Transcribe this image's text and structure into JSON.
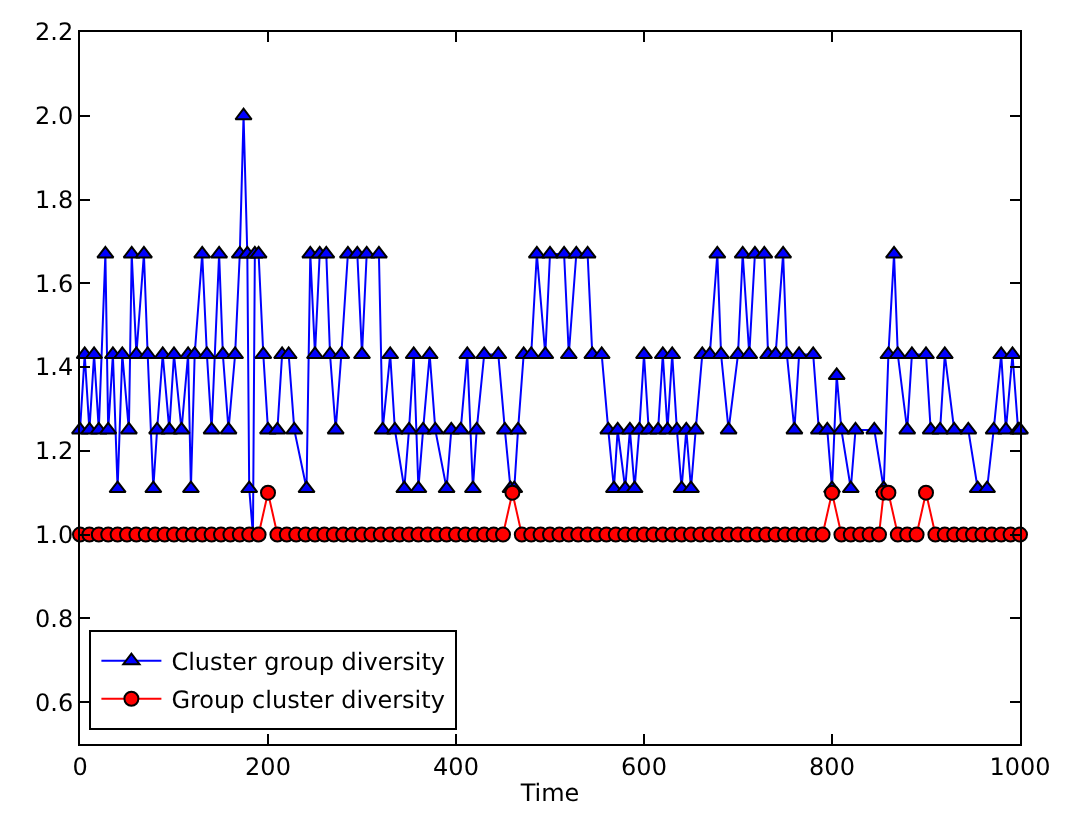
{
  "chart_data": {
    "type": "line",
    "xlabel": "Time",
    "xlim": [
      0,
      1000
    ],
    "xticks": [
      0,
      200,
      400,
      600,
      800,
      1000
    ],
    "ylim": [
      0.5,
      2.2
    ],
    "yticks": [
      0.6,
      0.8,
      {
        "value": 1,
        "label": "1.0"
      },
      1.2,
      1.4,
      1.6,
      1.8,
      {
        "value": 2,
        "label": "2.0"
      },
      2.2
    ],
    "legend": "bottom left",
    "line_style": "solid",
    "series": [
      {
        "name": "Cluster group diversity",
        "color": "#0000ff",
        "marker": "triangle",
        "x": [
          0,
          5,
          10,
          15,
          20,
          27,
          30,
          35,
          40,
          45,
          52,
          55,
          60,
          68,
          72,
          78,
          82,
          88,
          95,
          100,
          108,
          115,
          118,
          122,
          130,
          135,
          140,
          148,
          152,
          158,
          165,
          170,
          174,
          178,
          180,
          184,
          186,
          190,
          195,
          200,
          210,
          215,
          222,
          228,
          241,
          245,
          250,
          255,
          262,
          266,
          272,
          278,
          285,
          295,
          300,
          305,
          318,
          322,
          330,
          335,
          345,
          350,
          355,
          360,
          365,
          372,
          378,
          390,
          395,
          405,
          412,
          418,
          422,
          430,
          445,
          452,
          458,
          462,
          466,
          472,
          480,
          486,
          495,
          500,
          515,
          520,
          528,
          540,
          545,
          555,
          562,
          568,
          572,
          580,
          585,
          590,
          595,
          600,
          605,
          615,
          620,
          625,
          630,
          635,
          640,
          645,
          650,
          655,
          662,
          670,
          678,
          682,
          690,
          700,
          705,
          712,
          718,
          728,
          732,
          740,
          748,
          752,
          760,
          765,
          780,
          786,
          795,
          800,
          805,
          810,
          820,
          825,
          845,
          855,
          860,
          866,
          870,
          880,
          885,
          900,
          905,
          915,
          920,
          930,
          945,
          955,
          965,
          972,
          980,
          985,
          992,
          998,
          1000
        ],
        "values": [
          1.25,
          1.43,
          1.25,
          1.43,
          1.25,
          1.67,
          1.25,
          1.43,
          1.11,
          1.43,
          1.25,
          1.67,
          1.43,
          1.67,
          1.43,
          1.11,
          1.25,
          1.43,
          1.25,
          1.43,
          1.25,
          1.43,
          1.11,
          1.43,
          1.67,
          1.43,
          1.25,
          1.67,
          1.43,
          1.25,
          1.43,
          1.67,
          2.0,
          1.67,
          1.11,
          1.0,
          1.67,
          1.67,
          1.43,
          1.25,
          1.25,
          1.43,
          1.43,
          1.25,
          1.11,
          1.67,
          1.43,
          1.67,
          1.67,
          1.43,
          1.25,
          1.43,
          1.67,
          1.67,
          1.43,
          1.67,
          1.67,
          1.25,
          1.43,
          1.25,
          1.11,
          1.25,
          1.43,
          1.11,
          1.25,
          1.43,
          1.25,
          1.11,
          1.25,
          1.25,
          1.43,
          1.11,
          1.25,
          1.43,
          1.43,
          1.25,
          1.11,
          1.11,
          1.25,
          1.43,
          1.43,
          1.67,
          1.43,
          1.67,
          1.67,
          1.43,
          1.67,
          1.67,
          1.43,
          1.43,
          1.25,
          1.11,
          1.25,
          1.11,
          1.25,
          1.11,
          1.25,
          1.43,
          1.25,
          1.25,
          1.43,
          1.25,
          1.43,
          1.25,
          1.11,
          1.25,
          1.11,
          1.25,
          1.43,
          1.43,
          1.67,
          1.43,
          1.25,
          1.43,
          1.67,
          1.43,
          1.67,
          1.67,
          1.43,
          1.43,
          1.67,
          1.43,
          1.25,
          1.43,
          1.43,
          1.25,
          1.25,
          1.11,
          1.38,
          1.25,
          1.11,
          1.25,
          1.25,
          1.11,
          1.43,
          1.67,
          1.43,
          1.25,
          1.43,
          1.43,
          1.25,
          1.25,
          1.43,
          1.25,
          1.25,
          1.11,
          1.11,
          1.25,
          1.43,
          1.25,
          1.43,
          1.25,
          1.25
        ]
      },
      {
        "name": "Group cluster diversity",
        "color": "#ff0000",
        "marker": "circle",
        "x": [
          0,
          10,
          20,
          30,
          40,
          50,
          60,
          70,
          80,
          90,
          100,
          110,
          120,
          130,
          140,
          150,
          160,
          170,
          180,
          190,
          200,
          210,
          220,
          230,
          240,
          250,
          260,
          270,
          280,
          290,
          300,
          310,
          320,
          330,
          340,
          350,
          360,
          370,
          380,
          390,
          400,
          410,
          420,
          430,
          440,
          450,
          460,
          470,
          480,
          490,
          500,
          510,
          520,
          530,
          540,
          550,
          560,
          570,
          580,
          590,
          600,
          610,
          620,
          630,
          640,
          650,
          660,
          670,
          680,
          690,
          700,
          710,
          720,
          730,
          740,
          750,
          760,
          770,
          780,
          790,
          800,
          810,
          820,
          830,
          840,
          850,
          855,
          860,
          870,
          880,
          890,
          900,
          910,
          920,
          930,
          940,
          950,
          960,
          970,
          980,
          990,
          1000
        ],
        "values": [
          1.0,
          1.0,
          1.0,
          1.0,
          1.0,
          1.0,
          1.0,
          1.0,
          1.0,
          1.0,
          1.0,
          1.0,
          1.0,
          1.0,
          1.0,
          1.0,
          1.0,
          1.0,
          1.0,
          1.0,
          1.1,
          1.0,
          1.0,
          1.0,
          1.0,
          1.0,
          1.0,
          1.0,
          1.0,
          1.0,
          1.0,
          1.0,
          1.0,
          1.0,
          1.0,
          1.0,
          1.0,
          1.0,
          1.0,
          1.0,
          1.0,
          1.0,
          1.0,
          1.0,
          1.0,
          1.0,
          1.1,
          1.0,
          1.0,
          1.0,
          1.0,
          1.0,
          1.0,
          1.0,
          1.0,
          1.0,
          1.0,
          1.0,
          1.0,
          1.0,
          1.0,
          1.0,
          1.0,
          1.0,
          1.0,
          1.0,
          1.0,
          1.0,
          1.0,
          1.0,
          1.0,
          1.0,
          1.0,
          1.0,
          1.0,
          1.0,
          1.0,
          1.0,
          1.0,
          1.0,
          1.1,
          1.0,
          1.0,
          1.0,
          1.0,
          1.0,
          1.1,
          1.1,
          1.0,
          1.0,
          1.0,
          1.1,
          1.0,
          1.0,
          1.0,
          1.0,
          1.0,
          1.0,
          1.0,
          1.0,
          1.0,
          1.0
        ]
      }
    ]
  }
}
